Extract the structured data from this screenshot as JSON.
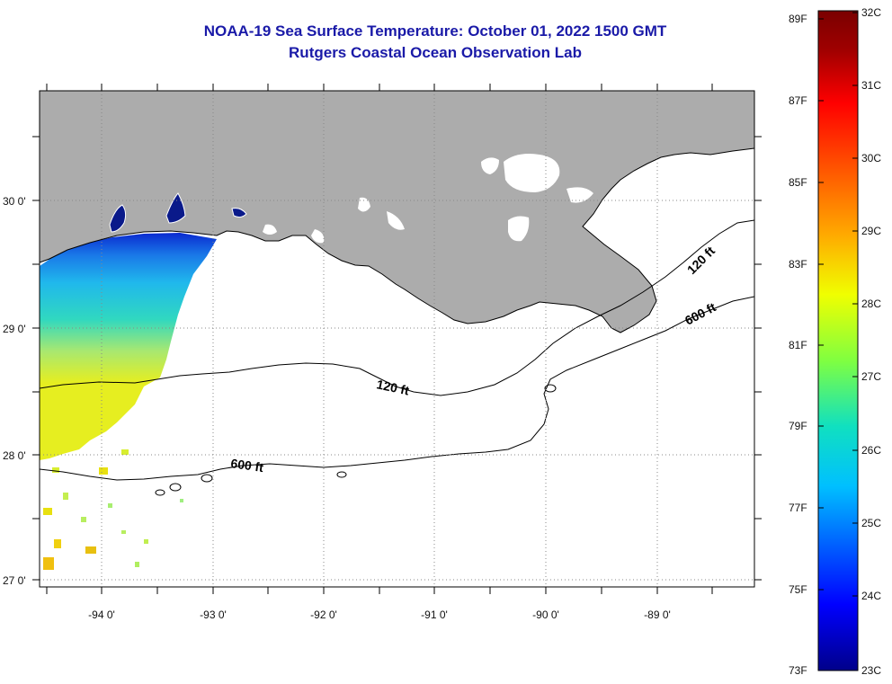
{
  "title": "NOAA-19 Sea Surface Temperature:  October 01, 2022 1500 GMT",
  "subtitle": "Rutgers Coastal Ocean Observation Lab",
  "map": {
    "lon_labels": [
      "-94 0'",
      "-93 0'",
      "-92 0'",
      "-91 0'",
      "-90 0'",
      "-89 0'"
    ],
    "lat_labels": [
      "30 0'",
      "29 0'",
      "28 0'",
      "27 0'"
    ],
    "contours": {
      "shelf_120": "120 ft",
      "slope_600": "600 ft",
      "east_120": "120 ft",
      "east_600": "600 ft"
    }
  },
  "colorbar": {
    "fahrenheit": [
      "89F",
      "87F",
      "85F",
      "83F",
      "81F",
      "79F",
      "77F",
      "75F",
      "73F"
    ],
    "celsius": [
      "32C",
      "31C",
      "30C",
      "29C",
      "28C",
      "27C",
      "26C",
      "25C",
      "24C",
      "23C"
    ]
  },
  "colors": {
    "title": "#1a1aa8",
    "land": "#acacac",
    "cloud_mask": "#ffffff"
  }
}
